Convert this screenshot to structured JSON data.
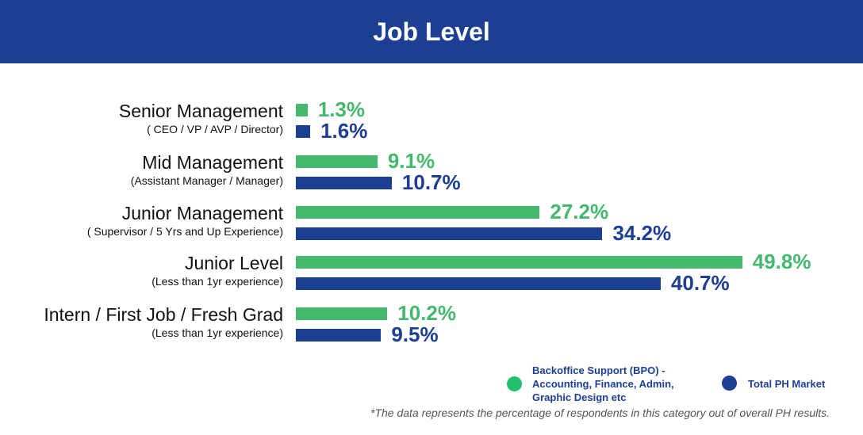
{
  "header": {
    "title": "Job Level"
  },
  "chart_data": {
    "type": "bar",
    "orientation": "horizontal",
    "title": "Job Level",
    "categories": [
      {
        "title": "Senior Management",
        "subtitle": "( CEO / VP / AVP / Director)"
      },
      {
        "title": "Mid Management",
        "subtitle": "(Assistant Manager / Manager)"
      },
      {
        "title": "Junior Management",
        "subtitle": "( Supervisor / 5 Yrs and Up Experience)"
      },
      {
        "title": "Junior Level",
        "subtitle": "(Less than 1yr experience)"
      },
      {
        "title": "Intern / First Job / Fresh Grad",
        "subtitle": "(Less than 1yr experience)"
      }
    ],
    "series": [
      {
        "name": "Backoffice Support (BPO) - Accounting, Finance, Admin, Graphic Design etc",
        "color": "#44b96e",
        "values": [
          1.3,
          9.1,
          27.2,
          49.8,
          10.2
        ],
        "labels": [
          "1.3%",
          "9.1%",
          "27.2%",
          "49.8%",
          "10.2%"
        ]
      },
      {
        "name": "Total PH Market",
        "color": "#1c3f94",
        "values": [
          1.6,
          10.7,
          34.2,
          40.7,
          9.5
        ],
        "labels": [
          "1.6%",
          "10.7%",
          "34.2%",
          "40.7%",
          "9.5%"
        ]
      }
    ],
    "unit": "%",
    "grid": false,
    "legend_placement": "bottom-right"
  },
  "legend": {
    "bpo_lines": [
      "Backoffice Support (BPO) -",
      "Accounting, Finance, Admin,",
      "Graphic Design etc"
    ],
    "total": "Total PH Market"
  },
  "footnote": "*The data represents the percentage of respondents in this category out of overall PH results."
}
